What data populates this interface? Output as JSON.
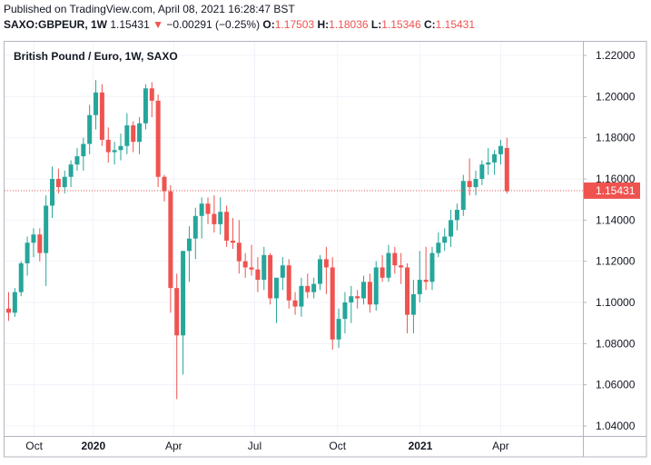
{
  "header": {
    "published": "Published on TradingView.com, April 08, 2021 16:28:47 BST",
    "symbol": "SAXO:GBPEUR, 1W",
    "last": "1.15431",
    "change_arrow": "▼",
    "change": "−0.00291 (−0.25%)",
    "o_label": "O:",
    "o_value": "1.17503",
    "h_label": "H:",
    "h_value": "1.18036",
    "l_label": "L:",
    "l_value": "1.15346",
    "c_label": "C:",
    "c_value": "1.15431"
  },
  "colors": {
    "up": "#26a69a",
    "down": "#ef5350",
    "grid": "#f0f3fa",
    "axis": "#b2b5be",
    "text": "#131722"
  },
  "chart_data": {
    "type": "candlestick",
    "title": "British Pound / Euro, 1W, SAXO",
    "ylim": [
      1.04,
      1.22
    ],
    "yticks": [
      "1.22000",
      "1.20000",
      "1.18000",
      "1.16000",
      "1.14000",
      "1.12000",
      "1.10000",
      "1.08000",
      "1.06000",
      "1.04000"
    ],
    "xticks": [
      {
        "label": "Oct",
        "index": 4.1
      },
      {
        "label": "2020",
        "index": 13.6
      },
      {
        "label": "Apr",
        "index": 26.5
      },
      {
        "label": "Jul",
        "index": 39.5
      },
      {
        "label": "Oct",
        "index": 52.8
      },
      {
        "label": "2021",
        "index": 66.1
      },
      {
        "label": "Apr",
        "index": 79.0
      }
    ],
    "year_labels": [
      "2020",
      "2021"
    ],
    "last_price": 1.15431,
    "last_price_label": "1.15431",
    "candles": [
      [
        1.097,
        1.105,
        1.091,
        1.095
      ],
      [
        1.095,
        1.107,
        1.093,
        1.105
      ],
      [
        1.105,
        1.12,
        1.103,
        1.119
      ],
      [
        1.119,
        1.132,
        1.113,
        1.129
      ],
      [
        1.129,
        1.136,
        1.122,
        1.133
      ],
      [
        1.133,
        1.136,
        1.12,
        1.124
      ],
      [
        1.124,
        1.152,
        1.108,
        1.147
      ],
      [
        1.147,
        1.166,
        1.141,
        1.16
      ],
      [
        1.16,
        1.165,
        1.153,
        1.156
      ],
      [
        1.156,
        1.164,
        1.153,
        1.161
      ],
      [
        1.161,
        1.169,
        1.156,
        1.167
      ],
      [
        1.167,
        1.175,
        1.164,
        1.171
      ],
      [
        1.171,
        1.18,
        1.164,
        1.177
      ],
      [
        1.177,
        1.196,
        1.172,
        1.191
      ],
      [
        1.191,
        1.208,
        1.184,
        1.202
      ],
      [
        1.202,
        1.206,
        1.176,
        1.179
      ],
      [
        1.179,
        1.185,
        1.168,
        1.173
      ],
      [
        1.173,
        1.178,
        1.167,
        1.174
      ],
      [
        1.174,
        1.182,
        1.169,
        1.176
      ],
      [
        1.176,
        1.192,
        1.172,
        1.186
      ],
      [
        1.186,
        1.188,
        1.173,
        1.178
      ],
      [
        1.178,
        1.19,
        1.172,
        1.187
      ],
      [
        1.187,
        1.206,
        1.184,
        1.204
      ],
      [
        1.204,
        1.207,
        1.19,
        1.198
      ],
      [
        1.198,
        1.201,
        1.156,
        1.161
      ],
      [
        1.161,
        1.162,
        1.149,
        1.154
      ],
      [
        1.154,
        1.157,
        1.095,
        1.107
      ],
      [
        1.107,
        1.114,
        1.053,
        1.084
      ],
      [
        1.084,
        1.125,
        1.065,
        1.125
      ],
      [
        1.125,
        1.137,
        1.11,
        1.131
      ],
      [
        1.131,
        1.146,
        1.121,
        1.142
      ],
      [
        1.142,
        1.151,
        1.131,
        1.148
      ],
      [
        1.148,
        1.151,
        1.138,
        1.143
      ],
      [
        1.143,
        1.152,
        1.134,
        1.138
      ],
      [
        1.138,
        1.151,
        1.133,
        1.144
      ],
      [
        1.144,
        1.147,
        1.127,
        1.13
      ],
      [
        1.13,
        1.141,
        1.126,
        1.129
      ],
      [
        1.129,
        1.14,
        1.114,
        1.12
      ],
      [
        1.12,
        1.124,
        1.112,
        1.117
      ],
      [
        1.117,
        1.128,
        1.113,
        1.116
      ],
      [
        1.116,
        1.122,
        1.105,
        1.111
      ],
      [
        1.111,
        1.127,
        1.106,
        1.123
      ],
      [
        1.123,
        1.124,
        1.099,
        1.102
      ],
      [
        1.102,
        1.112,
        1.09,
        1.112
      ],
      [
        1.112,
        1.122,
        1.106,
        1.118
      ],
      [
        1.118,
        1.121,
        1.097,
        1.101
      ],
      [
        1.101,
        1.105,
        1.094,
        1.098
      ],
      [
        1.098,
        1.112,
        1.093,
        1.108
      ],
      [
        1.108,
        1.114,
        1.102,
        1.105
      ],
      [
        1.105,
        1.112,
        1.102,
        1.109
      ],
      [
        1.109,
        1.123,
        1.106,
        1.121
      ],
      [
        1.121,
        1.127,
        1.104,
        1.117
      ],
      [
        1.117,
        1.122,
        1.077,
        1.082
      ],
      [
        1.082,
        1.097,
        1.078,
        1.092
      ],
      [
        1.092,
        1.105,
        1.085,
        1.1
      ],
      [
        1.1,
        1.108,
        1.09,
        1.103
      ],
      [
        1.103,
        1.106,
        1.097,
        1.102
      ],
      [
        1.102,
        1.113,
        1.099,
        1.11
      ],
      [
        1.11,
        1.114,
        1.095,
        1.099
      ],
      [
        1.099,
        1.12,
        1.096,
        1.117
      ],
      [
        1.117,
        1.123,
        1.11,
        1.112
      ],
      [
        1.112,
        1.128,
        1.11,
        1.124
      ],
      [
        1.124,
        1.127,
        1.114,
        1.118
      ],
      [
        1.118,
        1.124,
        1.109,
        1.117
      ],
      [
        1.117,
        1.119,
        1.085,
        1.094
      ],
      [
        1.094,
        1.111,
        1.085,
        1.104
      ],
      [
        1.104,
        1.125,
        1.1,
        1.111
      ],
      [
        1.111,
        1.127,
        1.106,
        1.11
      ],
      [
        1.11,
        1.127,
        1.106,
        1.124
      ],
      [
        1.124,
        1.134,
        1.122,
        1.129
      ],
      [
        1.129,
        1.136,
        1.125,
        1.132
      ],
      [
        1.132,
        1.145,
        1.127,
        1.14
      ],
      [
        1.14,
        1.148,
        1.135,
        1.145
      ],
      [
        1.145,
        1.162,
        1.142,
        1.159
      ],
      [
        1.159,
        1.17,
        1.152,
        1.156
      ],
      [
        1.156,
        1.164,
        1.152,
        1.16
      ],
      [
        1.16,
        1.169,
        1.157,
        1.167
      ],
      [
        1.167,
        1.175,
        1.162,
        1.168
      ],
      [
        1.168,
        1.174,
        1.162,
        1.172
      ],
      [
        1.172,
        1.179,
        1.167,
        1.176
      ],
      [
        1.175,
        1.18,
        1.153,
        1.154
      ]
    ]
  }
}
